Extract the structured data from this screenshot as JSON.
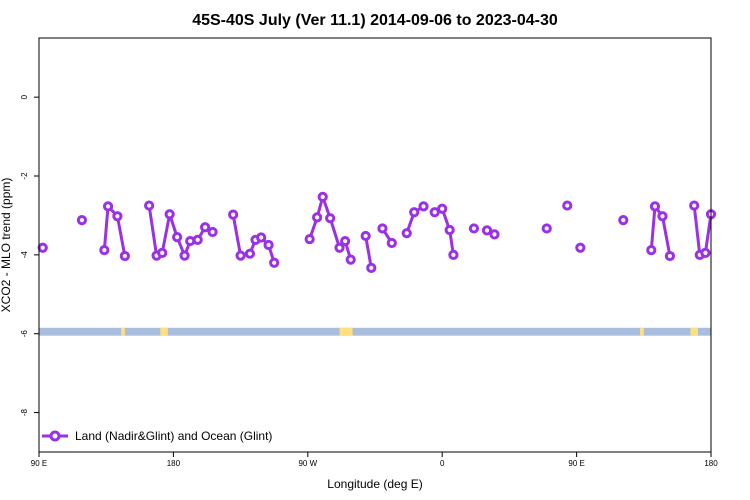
{
  "chart_data": {
    "type": "line",
    "title": "45S-40S July (Ver 11.1)   2014-09-06 to 2023-04-30",
    "xlabel": "Longitude (deg E)",
    "ylabel": "XCO2 - MLO trend (ppm)",
    "xlim": [
      90,
      450
    ],
    "ylim": [
      -9,
      1.5
    ],
    "x_ticks": [
      {
        "value": 90,
        "label": "90 E"
      },
      {
        "value": 162,
        "label": "180"
      },
      {
        "value": 234,
        "label": "90 W"
      },
      {
        "value": 306,
        "label": "0"
      },
      {
        "value": 378,
        "label": "90 E"
      },
      {
        "value": 450,
        "label": "180"
      }
    ],
    "y_ticks": [
      {
        "value": 0,
        "label": "0"
      },
      {
        "value": -2,
        "label": "-2"
      },
      {
        "value": -4,
        "label": "-4"
      },
      {
        "value": -6,
        "label": "-6"
      },
      {
        "value": -8,
        "label": "-8"
      }
    ],
    "series": [
      {
        "name": "Land (Nadir&Glint) and Ocean (Glint)",
        "color": "#9b30e6",
        "segments": [
          [
            [
              92,
              -3.82
            ]
          ],
          [
            [
              113,
              -3.12
            ]
          ],
          [
            [
              125,
              -3.88
            ],
            [
              127,
              -2.77
            ],
            [
              132,
              -3.02
            ],
            [
              136,
              -4.03
            ]
          ],
          [
            [
              149,
              -2.75
            ],
            [
              153,
              -4.02
            ],
            [
              156,
              -3.95
            ],
            [
              160,
              -2.97
            ],
            [
              164,
              -3.55
            ],
            [
              168,
              -4.02
            ],
            [
              171,
              -3.65
            ],
            [
              175,
              -3.62
            ],
            [
              179,
              -3.3
            ],
            [
              183,
              -3.42
            ]
          ],
          [
            [
              194,
              -2.98
            ],
            [
              198,
              -4.02
            ],
            [
              203,
              -3.97
            ],
            [
              206,
              -3.62
            ],
            [
              209,
              -3.56
            ],
            [
              213,
              -3.75
            ],
            [
              216,
              -4.2
            ]
          ],
          [
            [
              235,
              -3.6
            ],
            [
              239,
              -3.05
            ],
            [
              242,
              -2.53
            ],
            [
              246,
              -3.07
            ],
            [
              251,
              -3.82
            ],
            [
              254,
              -3.65
            ],
            [
              257,
              -4.12
            ]
          ],
          [
            [
              265,
              -3.52
            ],
            [
              268,
              -4.33
            ]
          ],
          [
            [
              274,
              -3.33
            ],
            [
              279,
              -3.7
            ]
          ],
          [
            [
              287,
              -3.45
            ],
            [
              291,
              -2.92
            ],
            [
              296,
              -2.77
            ]
          ],
          [
            [
              302,
              -2.92
            ],
            [
              306,
              -2.83
            ],
            [
              310,
              -3.37
            ],
            [
              312,
              -4.0
            ]
          ],
          [
            [
              323,
              -3.33
            ]
          ],
          [
            [
              330,
              -3.38
            ],
            [
              334,
              -3.48
            ]
          ],
          [
            [
              362,
              -3.33
            ]
          ],
          [
            [
              373,
              -2.75
            ]
          ],
          [
            [
              380,
              -3.82
            ]
          ],
          [
            [
              403,
              -3.12
            ]
          ],
          [
            [
              418,
              -3.88
            ],
            [
              420,
              -2.77
            ],
            [
              424,
              -3.02
            ],
            [
              428,
              -4.03
            ]
          ],
          [
            [
              441,
              -2.75
            ],
            [
              444,
              -4.0
            ],
            [
              447,
              -3.95
            ],
            [
              450,
              -2.97
            ]
          ]
        ]
      }
    ],
    "coast_band": {
      "y_range": [
        -5.85,
        -6.05
      ],
      "color": "#a8bedc",
      "land_color": "#ffe080",
      "land_x_ranges": [
        [
          134,
          136
        ],
        [
          155,
          159
        ],
        [
          251,
          258
        ],
        [
          412,
          414
        ],
        [
          439,
          443
        ]
      ]
    },
    "legend": {
      "placement": "bottom-left",
      "label": "Land (Nadir&Glint) and Ocean (Glint)"
    }
  }
}
